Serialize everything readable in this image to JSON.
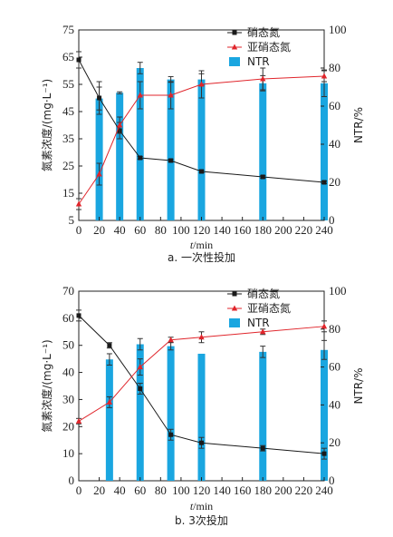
{
  "chart_data": [
    {
      "id": "a",
      "type": "bar",
      "caption": "a. 一次性投加",
      "xlabel_italic": "t",
      "xlabel_unit": "/min",
      "ylabel_left": "氮素浓度/(mg·L⁻¹)",
      "ylabel_right": "NTR/%",
      "xlim": [
        0,
        240
      ],
      "xticks": [
        0,
        20,
        40,
        60,
        80,
        100,
        120,
        140,
        160,
        180,
        200,
        220,
        240
      ],
      "ylim_left": [
        5,
        75
      ],
      "yticks_left": [
        5,
        15,
        25,
        35,
        45,
        55,
        65,
        75
      ],
      "ylim_right": [
        0,
        100
      ],
      "yticks_right": [
        0,
        20,
        40,
        60,
        80,
        100
      ],
      "legend": [
        "硝态氮",
        "亚硝态氮",
        "NTR"
      ],
      "colors": {
        "nitrate": "#1a1a1a",
        "nitrite": "#e0252b",
        "ntr": "#1aa6e0",
        "err": "#333333"
      },
      "bars": {
        "name": "NTR",
        "x": [
          20,
          40,
          60,
          90,
          120,
          180,
          240
        ],
        "values": [
          64,
          67,
          80,
          74,
          74,
          72,
          72
        ],
        "err": [
          6,
          0.5,
          3,
          1.5,
          3,
          4,
          7
        ]
      },
      "series": [
        {
          "name": "硝态氮",
          "x": [
            0,
            20,
            40,
            60,
            90,
            120,
            180,
            240
          ],
          "values": [
            64,
            50,
            38,
            28,
            27,
            23,
            21,
            19
          ],
          "err": [
            3,
            6,
            3,
            0.5,
            0.5,
            0.5,
            0.5,
            0.5
          ]
        },
        {
          "name": "亚硝态氮",
          "x": [
            0,
            20,
            40,
            60,
            90,
            120,
            180,
            240
          ],
          "values": [
            11,
            22,
            40,
            51,
            51,
            55,
            57,
            58
          ],
          "err": [
            2,
            4,
            3,
            5,
            5,
            5,
            4,
            2
          ]
        }
      ]
    },
    {
      "id": "b",
      "type": "bar",
      "caption": "b. 3次投加",
      "xlabel_italic": "t",
      "xlabel_unit": "/min",
      "ylabel_left": "氮素浓度/(mg·L⁻¹)",
      "ylabel_right": "NTR/%",
      "xlim": [
        0,
        240
      ],
      "xticks": [
        0,
        20,
        40,
        60,
        80,
        100,
        120,
        140,
        160,
        180,
        200,
        220,
        240
      ],
      "ylim_left": [
        0,
        70
      ],
      "yticks_left": [
        0,
        10,
        20,
        30,
        40,
        50,
        60,
        70
      ],
      "ylim_right": [
        0,
        100
      ],
      "yticks_right": [
        0,
        20,
        40,
        60,
        80,
        100
      ],
      "legend": [
        "硝态氮",
        "亚硝态氮",
        "NTR"
      ],
      "colors": {
        "nitrate": "#1a1a1a",
        "nitrite": "#e0252b",
        "ntr": "#1aa6e0",
        "err": "#333333"
      },
      "bars": {
        "name": "NTR",
        "x": [
          30,
          60,
          90,
          120,
          180,
          240
        ],
        "values": [
          64,
          72,
          71,
          67,
          68,
          69
        ],
        "err": [
          3,
          3,
          2,
          0,
          3,
          5
        ]
      },
      "series": [
        {
          "name": "硝态氮",
          "x": [
            0,
            30,
            60,
            90,
            120,
            180,
            240
          ],
          "values": [
            61,
            50,
            34,
            17,
            14,
            12,
            10
          ],
          "err": [
            2,
            1,
            2,
            2,
            2,
            1,
            2
          ]
        },
        {
          "name": "亚硝态氮",
          "x": [
            0,
            30,
            60,
            90,
            120,
            180,
            240
          ],
          "values": [
            22,
            29,
            42,
            52,
            53,
            55,
            57
          ],
          "err": [
            1,
            2,
            3,
            1,
            2,
            1,
            2
          ]
        }
      ]
    }
  ]
}
